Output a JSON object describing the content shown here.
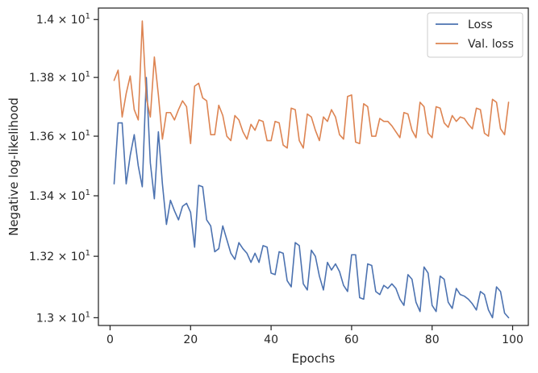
{
  "chart_data": {
    "type": "line",
    "title": "",
    "xlabel": "Epochs",
    "ylabel": "Negative log-likelihood",
    "x_range": [
      -2.9,
      103.9
    ],
    "y_range": [
      12.975,
      14.04
    ],
    "y_scale": "log",
    "x_ticks": [
      0,
      20,
      40,
      60,
      80,
      100
    ],
    "x_tick_labels": [
      "0",
      "20",
      "40",
      "60",
      "80",
      "100"
    ],
    "y_ticks": [
      13.0,
      13.2,
      13.4,
      13.6,
      13.8,
      14.0
    ],
    "y_tick_labels": [
      {
        "base": "1.3",
        "exp": "1"
      },
      {
        "base": "1.32",
        "exp": "1"
      },
      {
        "base": "1.34",
        "exp": "1"
      },
      {
        "base": "1.36",
        "exp": "1"
      },
      {
        "base": "1.38",
        "exp": "1"
      },
      {
        "base": "1.4",
        "exp": "1"
      }
    ],
    "grid": false,
    "legend": "top-right",
    "colors": {
      "Loss": "#4c72b0",
      "Val. loss": "#dd8452",
      "axes": "#262626"
    },
    "x": [
      1,
      2,
      3,
      4,
      5,
      6,
      7,
      8,
      9,
      10,
      11,
      12,
      13,
      14,
      15,
      16,
      17,
      18,
      19,
      20,
      21,
      22,
      23,
      24,
      25,
      26,
      27,
      28,
      29,
      30,
      31,
      32,
      33,
      34,
      35,
      36,
      37,
      38,
      39,
      40,
      41,
      42,
      43,
      44,
      45,
      46,
      47,
      48,
      49,
      50,
      51,
      52,
      53,
      54,
      55,
      56,
      57,
      58,
      59,
      60,
      61,
      62,
      63,
      64,
      65,
      66,
      67,
      68,
      69,
      70,
      71,
      72,
      73,
      74,
      75,
      76,
      77,
      78,
      79,
      80,
      81,
      82,
      83,
      84,
      85,
      86,
      87,
      88,
      89,
      90,
      91,
      92,
      93,
      94,
      95,
      96,
      97,
      98,
      99
    ],
    "series": [
      {
        "name": "Loss",
        "color": "#4c72b0",
        "values": [
          13.44,
          13.645,
          13.645,
          13.44,
          13.535,
          13.605,
          13.5,
          13.43,
          13.8,
          13.51,
          13.39,
          13.615,
          13.44,
          13.305,
          13.385,
          13.35,
          13.32,
          13.365,
          13.375,
          13.345,
          13.23,
          13.435,
          13.43,
          13.32,
          13.3,
          13.215,
          13.225,
          13.3,
          13.255,
          13.21,
          13.19,
          13.245,
          13.225,
          13.21,
          13.18,
          13.21,
          13.18,
          13.235,
          13.23,
          13.145,
          13.14,
          13.215,
          13.21,
          13.12,
          13.1,
          13.245,
          13.235,
          13.11,
          13.09,
          13.22,
          13.2,
          13.135,
          13.09,
          13.18,
          13.155,
          13.175,
          13.15,
          13.105,
          13.085,
          13.205,
          13.205,
          13.065,
          13.06,
          13.175,
          13.17,
          13.085,
          13.075,
          13.105,
          13.095,
          13.11,
          13.095,
          13.06,
          13.04,
          13.14,
          13.125,
          13.05,
          13.02,
          13.165,
          13.145,
          13.04,
          13.02,
          13.135,
          13.125,
          13.05,
          13.03,
          13.095,
          13.075,
          13.07,
          13.06,
          13.045,
          13.025,
          13.085,
          13.075,
          13.025,
          13.0,
          13.1,
          13.085,
          13.015,
          13.0
        ]
      },
      {
        "name": "Val. loss",
        "color": "#dd8452",
        "values": [
          13.79,
          13.825,
          13.665,
          13.745,
          13.805,
          13.69,
          13.655,
          13.995,
          13.73,
          13.665,
          13.87,
          13.74,
          13.59,
          13.68,
          13.68,
          13.655,
          13.69,
          13.72,
          13.7,
          13.575,
          13.77,
          13.78,
          13.73,
          13.72,
          13.605,
          13.605,
          13.705,
          13.67,
          13.6,
          13.585,
          13.67,
          13.655,
          13.615,
          13.59,
          13.64,
          13.62,
          13.655,
          13.65,
          13.585,
          13.585,
          13.65,
          13.645,
          13.57,
          13.56,
          13.695,
          13.69,
          13.585,
          13.56,
          13.675,
          13.665,
          13.62,
          13.585,
          13.665,
          13.65,
          13.69,
          13.665,
          13.605,
          13.59,
          13.735,
          13.74,
          13.58,
          13.575,
          13.71,
          13.7,
          13.6,
          13.6,
          13.66,
          13.65,
          13.65,
          13.635,
          13.615,
          13.595,
          13.68,
          13.675,
          13.62,
          13.595,
          13.715,
          13.7,
          13.61,
          13.595,
          13.7,
          13.695,
          13.645,
          13.63,
          13.67,
          13.65,
          13.665,
          13.66,
          13.64,
          13.625,
          13.695,
          13.69,
          13.61,
          13.6,
          13.725,
          13.715,
          13.625,
          13.605,
          13.715
        ]
      }
    ]
  }
}
